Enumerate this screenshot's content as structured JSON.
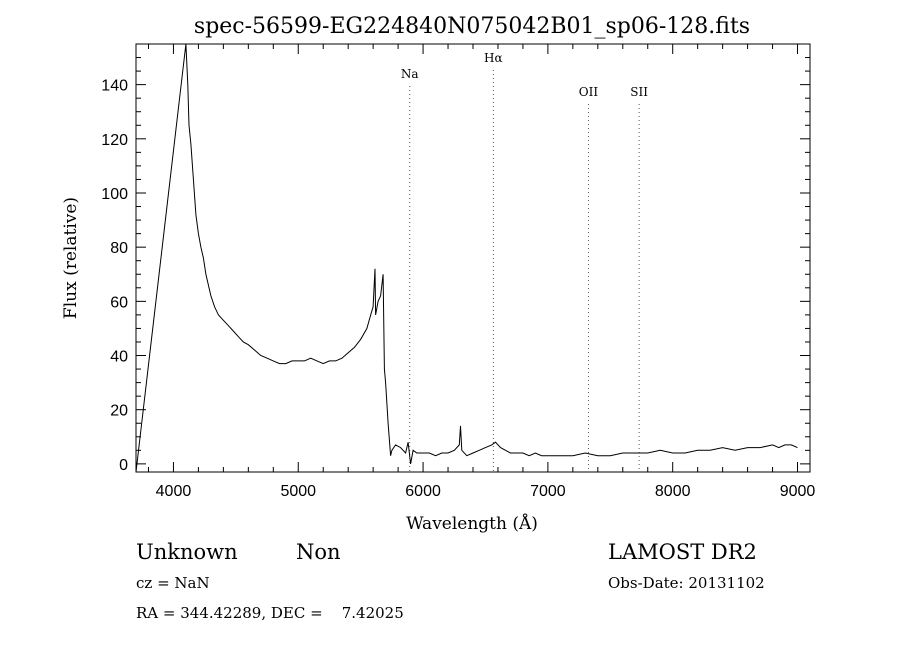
{
  "chart_data": {
    "type": "line",
    "title": "spec-56599-EG224840N075042B01_sp06-128.fits",
    "xlabel": "Wavelength (Å)",
    "ylabel": "Flux (relative)",
    "xlim": [
      3700,
      9100
    ],
    "ylim": [
      -3,
      155
    ],
    "xticks": [
      4000,
      5000,
      6000,
      7000,
      8000,
      9000
    ],
    "yticks": [
      0,
      20,
      40,
      60,
      80,
      100,
      120,
      140
    ],
    "grid": false,
    "series": [
      {
        "x": [
          3700,
          4100,
          4115,
          4125,
          4140,
          4160,
          4180,
          4200,
          4220,
          4240,
          4260,
          4280,
          4300,
          4330,
          4360,
          4400,
          4440,
          4480,
          4520,
          4560,
          4600,
          4650,
          4700,
          4750,
          4800,
          4850,
          4900,
          4950,
          5000,
          5050,
          5100,
          5150,
          5200,
          5250,
          5300,
          5350,
          5400,
          5450,
          5500,
          5550,
          5580,
          5600,
          5615,
          5620,
          5640,
          5660,
          5680,
          5690,
          5700,
          5720,
          5740,
          5750,
          5780,
          5820,
          5860,
          5880,
          5900,
          5920,
          5950,
          6000,
          6050,
          6100,
          6150,
          6200,
          6250,
          6290,
          6300,
          6310,
          6350,
          6400,
          6450,
          6500,
          6550,
          6580,
          6620,
          6660,
          6700,
          6750,
          6800,
          6850,
          6900,
          6950,
          7000,
          7100,
          7200,
          7300,
          7400,
          7500,
          7600,
          7700,
          7800,
          7900,
          8000,
          8100,
          8200,
          8300,
          8400,
          8500,
          8600,
          8700,
          8800,
          8850,
          8900,
          8950,
          9000
        ],
        "y": [
          -3,
          155,
          140,
          125,
          118,
          105,
          92,
          85,
          80,
          76,
          70,
          66,
          62,
          58,
          55,
          53,
          51,
          49,
          47,
          45,
          44,
          42,
          40,
          39,
          38,
          37,
          37,
          38,
          38,
          38,
          39,
          38,
          37,
          38,
          38,
          39,
          41,
          43,
          46,
          50,
          55,
          58,
          72,
          55,
          60,
          62,
          70,
          35,
          30,
          15,
          3,
          5,
          7,
          6,
          4,
          8,
          0,
          5,
          4,
          4,
          4,
          3,
          4,
          4,
          5,
          7,
          14,
          5,
          3,
          4,
          5,
          6,
          7,
          8,
          6,
          5,
          4,
          4,
          4,
          3,
          4,
          3,
          3,
          3,
          3,
          4,
          3,
          3,
          4,
          4,
          4,
          5,
          4,
          4,
          5,
          5,
          6,
          5,
          6,
          6,
          7,
          6,
          7,
          7,
          6
        ]
      }
    ],
    "lines": [
      {
        "label": "Na",
        "x": 5893
      },
      {
        "label": "Hα",
        "x": 6563
      },
      {
        "label": "OII",
        "x": 7325
      },
      {
        "label": "SII",
        "x": 7731
      }
    ]
  },
  "info": {
    "classification": "Unknown",
    "subclass": "Non",
    "cz": "cz = NaN",
    "coords": "RA = 344.42289, DEC =    7.42025",
    "survey": "LAMOST DR2",
    "obs_date": "Obs-Date: 20131102"
  }
}
